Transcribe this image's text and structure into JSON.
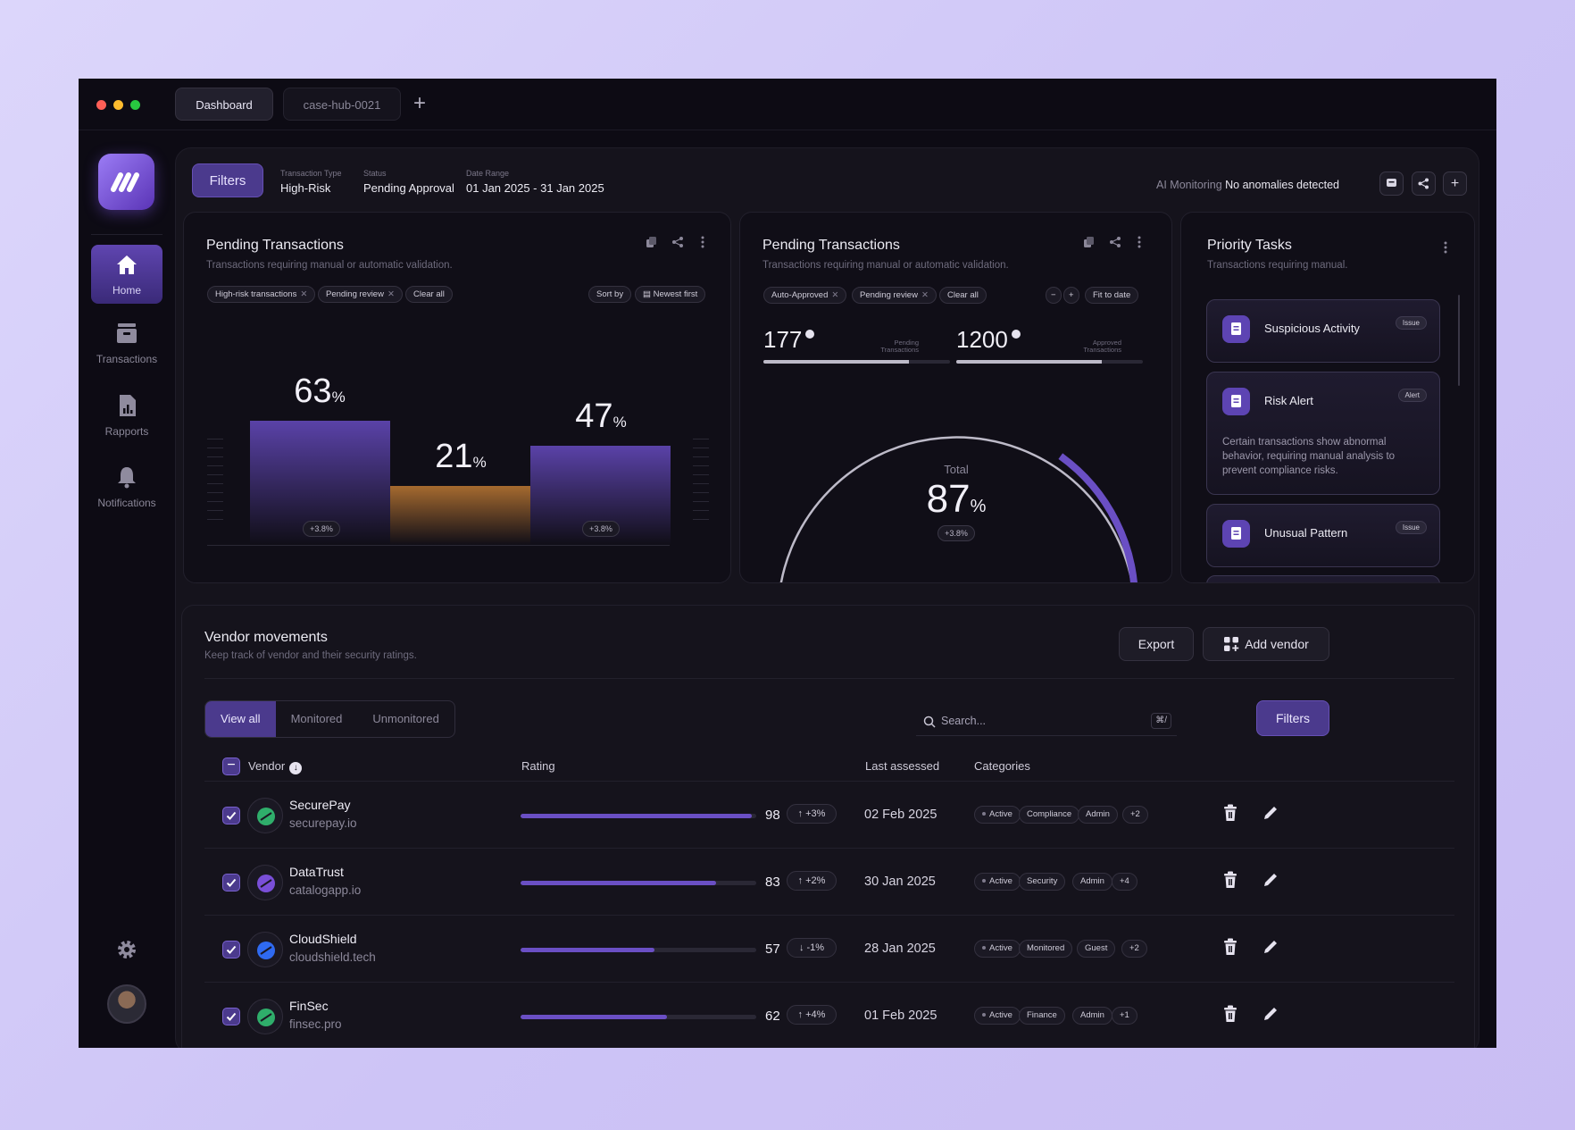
{
  "tabs": [
    {
      "label": "Dashboard",
      "active": true
    },
    {
      "label": "case-hub-0021",
      "active": false
    }
  ],
  "sidebar": {
    "items": [
      {
        "label": "Home",
        "icon": "home-icon",
        "active": true
      },
      {
        "label": "Transactions",
        "icon": "inbox-icon",
        "active": false
      },
      {
        "label": "Rapports",
        "icon": "report-icon",
        "active": false
      },
      {
        "label": "Notifications",
        "icon": "bell-icon",
        "active": false
      }
    ]
  },
  "filterbar": {
    "button": "Filters",
    "groups": [
      {
        "label": "Transaction Type",
        "value": "High-Risk"
      },
      {
        "label": "Status",
        "value": "Pending Approval"
      },
      {
        "label": "Date Range",
        "value": "01 Jan 2025 - 31 Jan 2025"
      }
    ],
    "ai_label": "AI Monitoring",
    "ai_status": "No anomalies detected"
  },
  "card_bars": {
    "title": "Pending Transactions",
    "subtitle": "Transactions requiring manual or automatic validation.",
    "chips": [
      "High-risk transactions",
      "Pending review"
    ],
    "clear": "Clear all",
    "sort_label": "Sort by",
    "sort_value": "Newest first",
    "bars": [
      {
        "value": 63,
        "delta": "+3.8%",
        "color": "#5a42a8"
      },
      {
        "value": 21,
        "delta": "",
        "color": "#a56a2f"
      },
      {
        "value": 47,
        "delta": "+3.8%",
        "color": "#5a42a8"
      }
    ],
    "pct_sign": "%"
  },
  "card_gauge": {
    "title": "Pending Transactions",
    "subtitle": "Transactions requiring manual or automatic validation.",
    "chips": [
      "Auto-Approved",
      "Pending review"
    ],
    "clear": "Clear all",
    "fit": "Fit to date",
    "minus": "−",
    "plus": "+",
    "stat1": {
      "value": "177",
      "label1": "Pending",
      "label2": "Transactions",
      "progress": 0.78
    },
    "stat2": {
      "value": "1200",
      "label1": "Approved",
      "label2": "Transactions",
      "progress": 0.78
    },
    "total_label": "Total",
    "total_value": "87",
    "pct_sign": "%",
    "total_delta": "+3.8%"
  },
  "card_tasks": {
    "title": "Priority Tasks",
    "subtitle": "Transactions requiring manual.",
    "tasks": [
      {
        "title": "Suspicious Activity",
        "badge": "Issue"
      },
      {
        "title": "Risk Alert",
        "badge": "Alert",
        "desc": "Certain transactions show abnormal behavior, requiring manual analysis to prevent compliance risks."
      },
      {
        "title": "Unusual Pattern",
        "badge": "Issue"
      }
    ]
  },
  "vendors": {
    "title": "Vendor movements",
    "subtitle": "Keep track of vendor and their security ratings.",
    "export": "Export",
    "add": "Add vendor",
    "segments": [
      "View all",
      "Monitored",
      "Unmonitored"
    ],
    "search_placeholder": "Search...",
    "shortcut": "⌘/",
    "filters": "Filters",
    "columns": {
      "vendor": "Vendor",
      "rating": "Rating",
      "last": "Last assessed",
      "categories": "Categories"
    },
    "rows": [
      {
        "name": "SecurePay",
        "domain": "securepay.io",
        "rating": 98,
        "delta": "↑ +3%",
        "date": "02 Feb 2025",
        "tags": [
          "Active",
          "Compliance",
          "Admin",
          "+2"
        ],
        "logo_color": "#2fae6b"
      },
      {
        "name": "DataTrust",
        "domain": "catalogapp.io",
        "rating": 83,
        "delta": "↑ +2%",
        "date": "30 Jan 2025",
        "tags": [
          "Active",
          "Security",
          "Admin",
          "+4"
        ],
        "logo_color": "#7a4fd8"
      },
      {
        "name": "CloudShield",
        "domain": "cloudshield.tech",
        "rating": 57,
        "delta": "↓ -1%",
        "date": "28 Jan 2025",
        "tags": [
          "Active",
          "Monitored",
          "Guest",
          "+2"
        ],
        "logo_color": "#2f6af0"
      },
      {
        "name": "FinSec",
        "domain": "finsec.pro",
        "rating": 62,
        "delta": "↑ +4%",
        "date": "01 Feb 2025",
        "tags": [
          "Active",
          "Finance",
          "Admin",
          "+1"
        ],
        "logo_color": "#2fae6b"
      }
    ]
  }
}
